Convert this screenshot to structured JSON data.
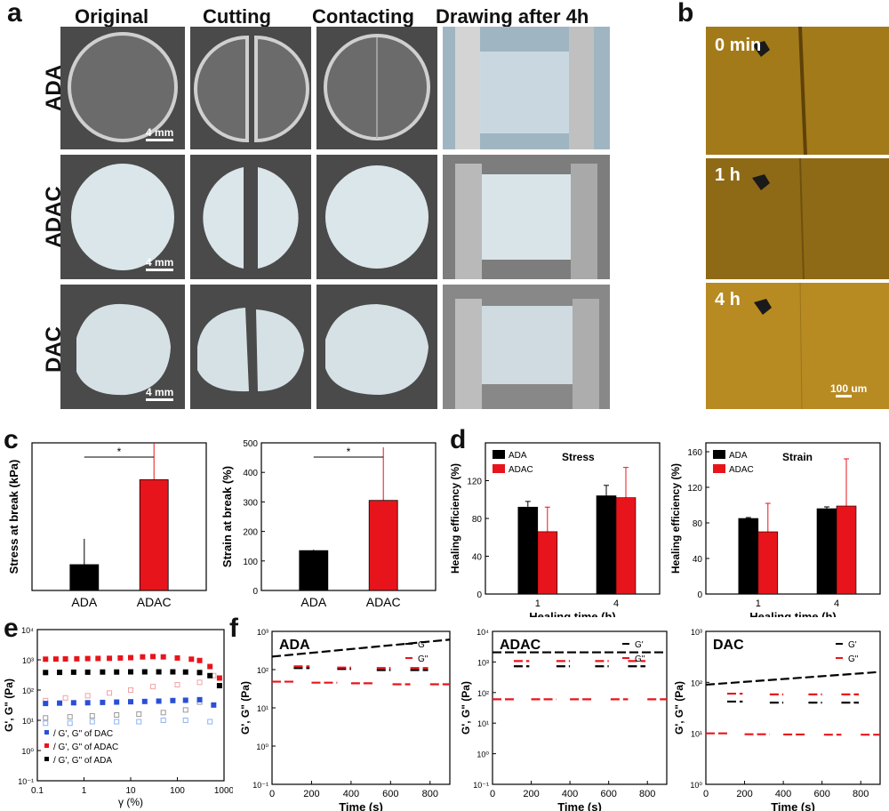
{
  "panel_letters": [
    "a",
    "b",
    "c",
    "d",
    "e",
    "f"
  ],
  "panel_a": {
    "columns": [
      "Original",
      "Cutting",
      "Contacting",
      "Drawing after 4h"
    ],
    "rows": [
      "ADA",
      "ADAC",
      "DAC"
    ],
    "scale_label": "4 mm"
  },
  "panel_b": {
    "labels": [
      "0 min",
      "1 h",
      "4 h"
    ],
    "scale_label": "100 um"
  },
  "colors": {
    "ADA": "#000000",
    "ADAC": "#e8141b",
    "DAC": "#2a4fd6",
    "micro": "#a37a1a"
  },
  "chart_data": [
    {
      "id": "c1",
      "type": "bar",
      "categories": [
        "ADA",
        "ADAC"
      ],
      "values": [
        1.4,
        6.0
      ],
      "errors": [
        1.4,
        2.2
      ],
      "colors": [
        "#000000",
        "#e8141b"
      ],
      "ylabel": "Stress at break (kPa)",
      "xlabel": "",
      "ylim": [
        0,
        8
      ],
      "significance": "*"
    },
    {
      "id": "c2",
      "type": "bar",
      "categories": [
        "ADA",
        "ADAC"
      ],
      "values": [
        135,
        305
      ],
      "errors": [
        3,
        180
      ],
      "colors": [
        "#000000",
        "#e8141b"
      ],
      "ylabel": "Strain at break (%)",
      "xlabel": "",
      "ylim": [
        0,
        500
      ],
      "yticks": [
        0,
        100,
        200,
        300,
        400,
        500
      ],
      "significance": "*"
    },
    {
      "id": "d1",
      "type": "bar",
      "title": "Stress",
      "categories": [
        "1",
        "4"
      ],
      "series": [
        {
          "name": "ADA",
          "values": [
            92,
            104
          ],
          "errors": [
            6,
            11
          ]
        },
        {
          "name": "ADAC",
          "values": [
            66,
            102
          ],
          "errors": [
            26,
            32
          ]
        }
      ],
      "ylabel": "Healing efficiency (%)",
      "xlabel": "Healing time (h)",
      "ylim": [
        0,
        160
      ],
      "yticks": [
        0,
        40,
        80,
        120
      ]
    },
    {
      "id": "d2",
      "type": "bar",
      "title": "Strain",
      "categories": [
        "1",
        "4"
      ],
      "series": [
        {
          "name": "ADA",
          "values": [
            85,
            96
          ],
          "errors": [
            1,
            2
          ]
        },
        {
          "name": "ADAC",
          "values": [
            70,
            99
          ],
          "errors": [
            32,
            53
          ]
        }
      ],
      "ylabel": "Healing efficiency (%)",
      "xlabel": "Healing time (h)",
      "ylim": [
        0,
        170
      ],
      "yticks": [
        0,
        40,
        80,
        120,
        160
      ]
    },
    {
      "id": "e",
      "type": "scatter",
      "xscale": "log",
      "yscale": "log",
      "xlim": [
        0.1,
        1000
      ],
      "ylim": [
        0.1,
        10000
      ],
      "xticks": [
        "0.1",
        "1",
        "10",
        "100",
        "1000"
      ],
      "yticks": [
        "10⁻¹",
        "10⁰",
        "10¹",
        "10²",
        "10³",
        "10⁴"
      ],
      "xlabel": "γ (%)",
      "ylabel": "G', G\" (Pa)",
      "legend": [
        "G', G\" of DAC",
        "G', G\" of ADAC",
        "G', G\" of ADA"
      ],
      "series": [
        {
          "name": "G' ADAC",
          "color": "#e8141b",
          "filled": true,
          "x": [
            0.15,
            0.25,
            0.4,
            0.7,
            1.2,
            2,
            3.5,
            6,
            10,
            18,
            30,
            50,
            100,
            200,
            300,
            500,
            800
          ],
          "y": [
            1050,
            1060,
            1070,
            1080,
            1100,
            1110,
            1120,
            1150,
            1180,
            1250,
            1280,
            1250,
            1150,
            1050,
            950,
            600,
            250
          ]
        },
        {
          "name": "G\" ADAC",
          "color": "#f2a3a5",
          "filled": false,
          "x": [
            0.15,
            0.4,
            1.2,
            3.5,
            10,
            30,
            100,
            300,
            600
          ],
          "y": [
            45,
            55,
            65,
            80,
            100,
            130,
            150,
            180,
            300
          ]
        },
        {
          "name": "G' ADA",
          "color": "#000000",
          "filled": true,
          "x": [
            0.15,
            0.3,
            0.6,
            1.2,
            2.5,
            5,
            10,
            20,
            40,
            80,
            150,
            300,
            500,
            800
          ],
          "y": [
            380,
            385,
            390,
            390,
            395,
            395,
            400,
            400,
            400,
            400,
            395,
            380,
            300,
            140
          ]
        },
        {
          "name": "G\" ADA",
          "color": "#999999",
          "filled": false,
          "x": [
            0.15,
            0.5,
            1.5,
            5,
            15,
            50,
            150,
            300
          ],
          "y": [
            12,
            13,
            14,
            15,
            16,
            18,
            22,
            40
          ]
        },
        {
          "name": "G' DAC",
          "color": "#2a4fd6",
          "filled": true,
          "x": [
            0.15,
            0.3,
            0.6,
            1.2,
            2.5,
            5,
            10,
            20,
            40,
            80,
            150,
            300,
            600
          ],
          "y": [
            36,
            37,
            38,
            38,
            39,
            40,
            41,
            42,
            43,
            45,
            46,
            48,
            32
          ]
        },
        {
          "name": "G\" DAC",
          "color": "#8fb3f0",
          "filled": false,
          "x": [
            0.15,
            0.5,
            1.5,
            5,
            15,
            50,
            150,
            500
          ],
          "y": [
            8,
            8,
            9,
            9,
            9,
            10,
            10,
            9
          ]
        }
      ]
    },
    {
      "id": "f1",
      "type": "line",
      "title": "ADA",
      "xlabel": "Time (s)",
      "ylabel": "G', G\" (Pa)",
      "xlim": [
        0,
        900
      ],
      "xticks": [
        0,
        200,
        400,
        600,
        800
      ],
      "ylim": [
        0.0001,
        1000
      ],
      "yticks": [
        "10⁻¹",
        "10⁰",
        "10¹",
        "10²",
        "10³"
      ],
      "legend": [
        "G'",
        "G\""
      ],
      "segments": [
        {
          "series": "G'",
          "color": "#000000",
          "x": [
            0,
            900
          ],
          "y": [
            70,
            420
          ]
        },
        {
          "series": "G'",
          "color": "#000000",
          "x": [
            110,
            190
          ],
          "y": [
            21,
            21
          ]
        },
        {
          "series": "G'",
          "color": "#000000",
          "x": [
            330,
            400
          ],
          "y": [
            19,
            19
          ]
        },
        {
          "series": "G'",
          "color": "#000000",
          "x": [
            530,
            600
          ],
          "y": [
            17,
            17
          ]
        },
        {
          "series": "G'",
          "color": "#000000",
          "x": [
            700,
            790
          ],
          "y": [
            17,
            17
          ]
        },
        {
          "series": "G\"",
          "color": "#e8141b",
          "x": [
            0,
            110
          ],
          "y": [
            5,
            5
          ]
        },
        {
          "series": "G\"",
          "color": "#e8141b",
          "x": [
            110,
            190
          ],
          "y": [
            25,
            25
          ]
        },
        {
          "series": "G\"",
          "color": "#e8141b",
          "x": [
            200,
            330
          ],
          "y": [
            4.5,
            4.5
          ]
        },
        {
          "series": "G\"",
          "color": "#e8141b",
          "x": [
            330,
            400
          ],
          "y": [
            22,
            22
          ]
        },
        {
          "series": "G\"",
          "color": "#e8141b",
          "x": [
            400,
            520
          ],
          "y": [
            4.2,
            4.2
          ]
        },
        {
          "series": "G\"",
          "color": "#e8141b",
          "x": [
            530,
            600
          ],
          "y": [
            21,
            21
          ]
        },
        {
          "series": "G\"",
          "color": "#e8141b",
          "x": [
            610,
            700
          ],
          "y": [
            3.8,
            3.8
          ]
        },
        {
          "series": "G\"",
          "color": "#e8141b",
          "x": [
            700,
            790
          ],
          "y": [
            21,
            21
          ]
        },
        {
          "series": "G\"",
          "color": "#e8141b",
          "x": [
            800,
            900
          ],
          "y": [
            3.8,
            3.8
          ]
        }
      ]
    },
    {
      "id": "f2",
      "type": "line",
      "title": "ADAC",
      "xlabel": "Time (s)",
      "ylabel": "G', G\" (Pa)",
      "xlim": [
        0,
        900
      ],
      "xticks": [
        0,
        200,
        400,
        600,
        800
      ],
      "ylim": [
        0.0001,
        10000
      ],
      "yticks": [
        "10⁻¹",
        "10⁰",
        "10¹",
        "10²",
        "10³",
        "10⁴"
      ],
      "legend": [
        "G'",
        "G\""
      ],
      "segments": [
        {
          "series": "G'",
          "color": "#000000",
          "x": [
            0,
            900
          ],
          "y": [
            800,
            800
          ]
        },
        {
          "series": "G'",
          "color": "#000000",
          "x": [
            110,
            190
          ],
          "y": [
            150,
            150
          ]
        },
        {
          "series": "G'",
          "color": "#000000",
          "x": [
            330,
            400
          ],
          "y": [
            150,
            150
          ]
        },
        {
          "series": "G'",
          "color": "#000000",
          "x": [
            530,
            600
          ],
          "y": [
            150,
            150
          ]
        },
        {
          "series": "G'",
          "color": "#000000",
          "x": [
            700,
            790
          ],
          "y": [
            150,
            150
          ]
        },
        {
          "series": "G\"",
          "color": "#e8141b",
          "x": [
            110,
            190
          ],
          "y": [
            280,
            280
          ]
        },
        {
          "series": "G\"",
          "color": "#e8141b",
          "x": [
            330,
            400
          ],
          "y": [
            280,
            280
          ]
        },
        {
          "series": "G\"",
          "color": "#e8141b",
          "x": [
            530,
            600
          ],
          "y": [
            280,
            280
          ]
        },
        {
          "series": "G\"",
          "color": "#e8141b",
          "x": [
            700,
            790
          ],
          "y": [
            280,
            280
          ]
        },
        {
          "series": "G\"",
          "color": "#e8141b",
          "x": [
            0,
            110
          ],
          "y": [
            2.8,
            2.8
          ]
        },
        {
          "series": "G\"",
          "color": "#e8141b",
          "x": [
            200,
            330
          ],
          "y": [
            2.8,
            2.8
          ]
        },
        {
          "series": "G\"",
          "color": "#e8141b",
          "x": [
            400,
            520
          ],
          "y": [
            2.8,
            2.8
          ]
        },
        {
          "series": "G\"",
          "color": "#e8141b",
          "x": [
            610,
            700
          ],
          "y": [
            2.8,
            2.8
          ]
        },
        {
          "series": "G\"",
          "color": "#e8141b",
          "x": [
            800,
            900
          ],
          "y": [
            2.8,
            2.8
          ]
        }
      ]
    },
    {
      "id": "f3",
      "type": "line",
      "title": "DAC",
      "xlabel": "Time (s)",
      "ylabel": "G', G\" (Pa)",
      "xlim": [
        0,
        900
      ],
      "xticks": [
        0,
        200,
        400,
        600,
        800
      ],
      "ylim": [
        1,
        1000
      ],
      "yticks": [
        "10⁰",
        "10¹",
        "10²",
        "10³"
      ],
      "legend": [
        "G'",
        "G\""
      ],
      "segments": [
        {
          "series": "G'",
          "color": "#000000",
          "x": [
            0,
            900
          ],
          "y": [
            90,
            160
          ]
        },
        {
          "series": "G'",
          "color": "#000000",
          "x": [
            110,
            190
          ],
          "y": [
            42,
            42
          ]
        },
        {
          "series": "G'",
          "color": "#000000",
          "x": [
            330,
            400
          ],
          "y": [
            40,
            40
          ]
        },
        {
          "series": "G'",
          "color": "#000000",
          "x": [
            530,
            600
          ],
          "y": [
            40,
            40
          ]
        },
        {
          "series": "G'",
          "color": "#000000",
          "x": [
            700,
            790
          ],
          "y": [
            40,
            40
          ]
        },
        {
          "series": "G\"",
          "color": "#e8141b",
          "x": [
            110,
            190
          ],
          "y": [
            60,
            60
          ]
        },
        {
          "series": "G\"",
          "color": "#e8141b",
          "x": [
            330,
            400
          ],
          "y": [
            58,
            58
          ]
        },
        {
          "series": "G\"",
          "color": "#e8141b",
          "x": [
            530,
            600
          ],
          "y": [
            58,
            58
          ]
        },
        {
          "series": "G\"",
          "color": "#e8141b",
          "x": [
            700,
            790
          ],
          "y": [
            58,
            58
          ]
        },
        {
          "series": "G\"",
          "color": "#e8141b",
          "x": [
            0,
            110
          ],
          "y": [
            10,
            10
          ]
        },
        {
          "series": "G\"",
          "color": "#e8141b",
          "x": [
            200,
            330
          ],
          "y": [
            9.6,
            9.6
          ]
        },
        {
          "series": "G\"",
          "color": "#e8141b",
          "x": [
            400,
            520
          ],
          "y": [
            9.5,
            9.5
          ]
        },
        {
          "series": "G\"",
          "color": "#e8141b",
          "x": [
            610,
            700
          ],
          "y": [
            9.4,
            9.4
          ]
        },
        {
          "series": "G\"",
          "color": "#e8141b",
          "x": [
            800,
            900
          ],
          "y": [
            9.4,
            9.4
          ]
        }
      ]
    }
  ]
}
